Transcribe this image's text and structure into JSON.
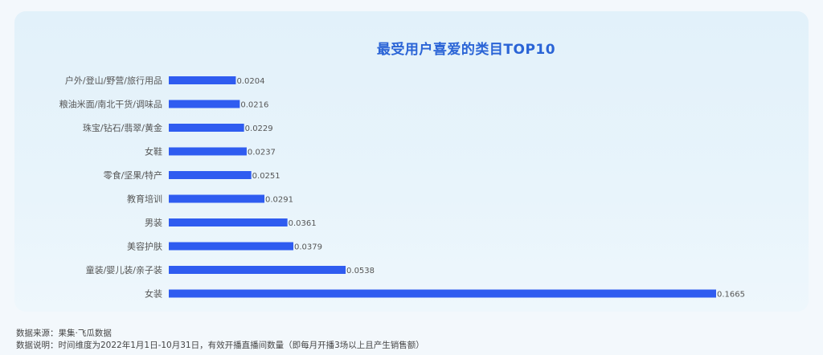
{
  "chart_data": {
    "type": "bar",
    "orientation": "horizontal",
    "title": "最受用户喜爱的类目TOP10",
    "categories": [
      "户外/登山/野营/旅行用品",
      "粮油米面/南北干货/调味品",
      "珠宝/钻石/翡翠/黄金",
      "女鞋",
      "零食/坚果/特产",
      "教育培训",
      "男装",
      "美容护肤",
      "童装/婴儿装/亲子装",
      "女装"
    ],
    "values": [
      0.0204,
      0.0216,
      0.0229,
      0.0237,
      0.0251,
      0.0291,
      0.0361,
      0.0379,
      0.0538,
      0.1665
    ],
    "value_labels": [
      "0.0204",
      "0.0216",
      "0.0229",
      "0.0237",
      "0.0251",
      "0.0291",
      "0.0361",
      "0.0379",
      "0.0538",
      "0.1665"
    ],
    "xlim": [
      0,
      0.1665
    ],
    "grid": false,
    "bar_color": "#2f5cf0"
  },
  "footer": {
    "source": "数据来源：果集·飞瓜数据",
    "note": "数据说明：时间维度为2022年1月1日-10月31日，有效开播直播间数量（即每月开播3场以上且产生销售额）"
  }
}
